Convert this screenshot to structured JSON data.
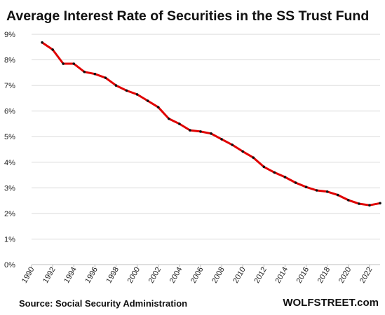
{
  "chart_data": {
    "type": "line",
    "title": "Average Interest Rate of Securities in the SS Trust Fund",
    "xlabel": "",
    "ylabel": "",
    "xlim": [
      1990,
      2023
    ],
    "ylim": [
      0,
      9
    ],
    "x_ticks": [
      "1990",
      "1992",
      "1994",
      "1996",
      "1998",
      "2000",
      "2002",
      "2004",
      "2006",
      "2008",
      "2010",
      "2012",
      "2014",
      "2016",
      "2018",
      "2020",
      "2022"
    ],
    "y_ticks": [
      "0%",
      "1%",
      "2%",
      "3%",
      "4%",
      "5%",
      "6%",
      "7%",
      "8%",
      "9%"
    ],
    "grid": true,
    "legend": "none",
    "series": [
      {
        "color": "#e00000",
        "marker_color": "#111111",
        "x": [
          1991,
          1992,
          1993,
          1994,
          1995,
          1996,
          1997,
          1998,
          1999,
          2000,
          2001,
          2002,
          2003,
          2004,
          2005,
          2006,
          2007,
          2008,
          2009,
          2010,
          2011,
          2012,
          2013,
          2014,
          2015,
          2016,
          2017,
          2018,
          2019,
          2020,
          2021,
          2022,
          2023
        ],
        "values": [
          8.68,
          8.4,
          7.85,
          7.85,
          7.53,
          7.45,
          7.3,
          7.0,
          6.8,
          6.65,
          6.4,
          6.15,
          5.7,
          5.5,
          5.25,
          5.2,
          5.12,
          4.9,
          4.68,
          4.42,
          4.18,
          3.82,
          3.6,
          3.42,
          3.2,
          3.03,
          2.9,
          2.85,
          2.72,
          2.52,
          2.38,
          2.32,
          2.4
        ]
      }
    ]
  },
  "footer": {
    "source": "Source: Social Security Administration",
    "brand": "WOLFSTREET.com"
  },
  "colors": {
    "gridline": "#d9d9d9",
    "axis": "#bfbfbf"
  }
}
